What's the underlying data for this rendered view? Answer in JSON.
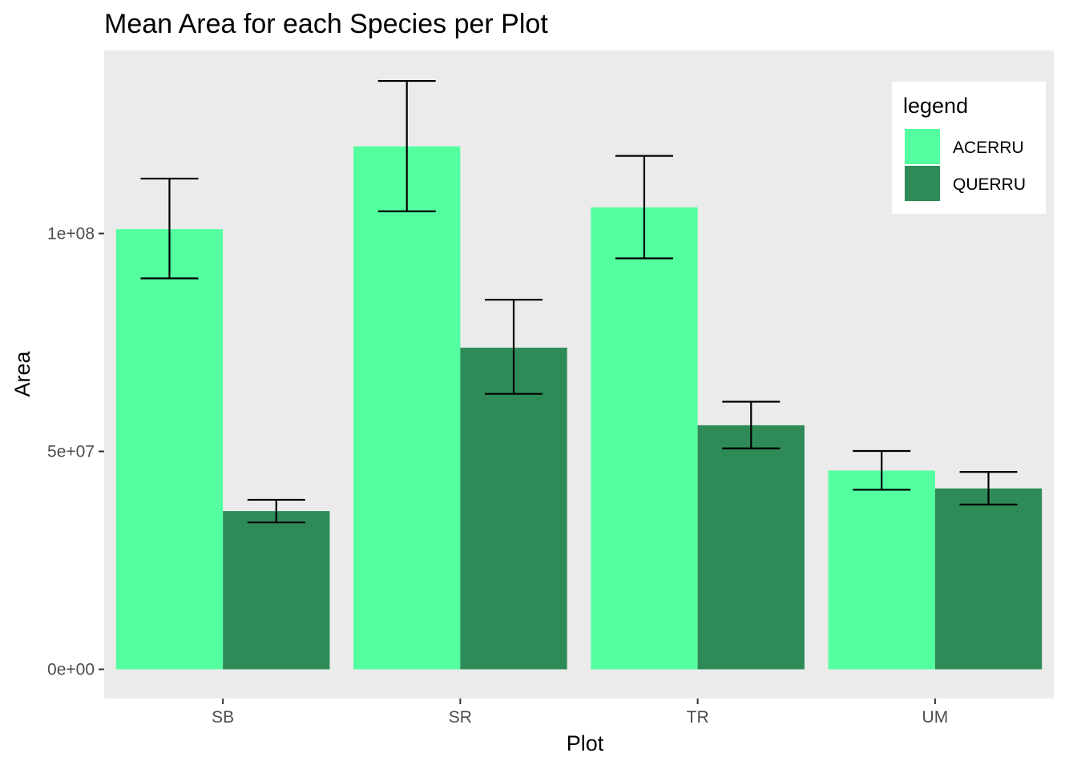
{
  "chart_data": {
    "type": "bar",
    "title": "Mean Area for each Species per Plot",
    "xlabel": "Plot",
    "ylabel": "Area",
    "categories": [
      "SB",
      "SR",
      "TR",
      "UM"
    ],
    "series": [
      {
        "name": "ACERRU",
        "color": "#54FF9F",
        "values": [
          101000000,
          120000000,
          106000000,
          45600000
        ],
        "error_low": [
          89700000,
          105100000,
          94300000,
          41200000
        ],
        "error_high": [
          112600000,
          135000000,
          117800000,
          50100000
        ]
      },
      {
        "name": "QUERRU",
        "color": "#2E8B57",
        "values": [
          36300000,
          73800000,
          56000000,
          41500000
        ],
        "error_low": [
          33700000,
          63200000,
          50700000,
          37800000
        ],
        "error_high": [
          38900000,
          84800000,
          61400000,
          45300000
        ]
      }
    ],
    "ylim": [
      -6700000,
      142000000
    ],
    "yticks": [
      0,
      50000000,
      100000000
    ],
    "ytick_labels": [
      "0e+00",
      "5e+07",
      "1e+08"
    ],
    "legend": {
      "title": "legend",
      "position": "top-right"
    },
    "grid": false,
    "panel_background": "#EBEBEB"
  }
}
